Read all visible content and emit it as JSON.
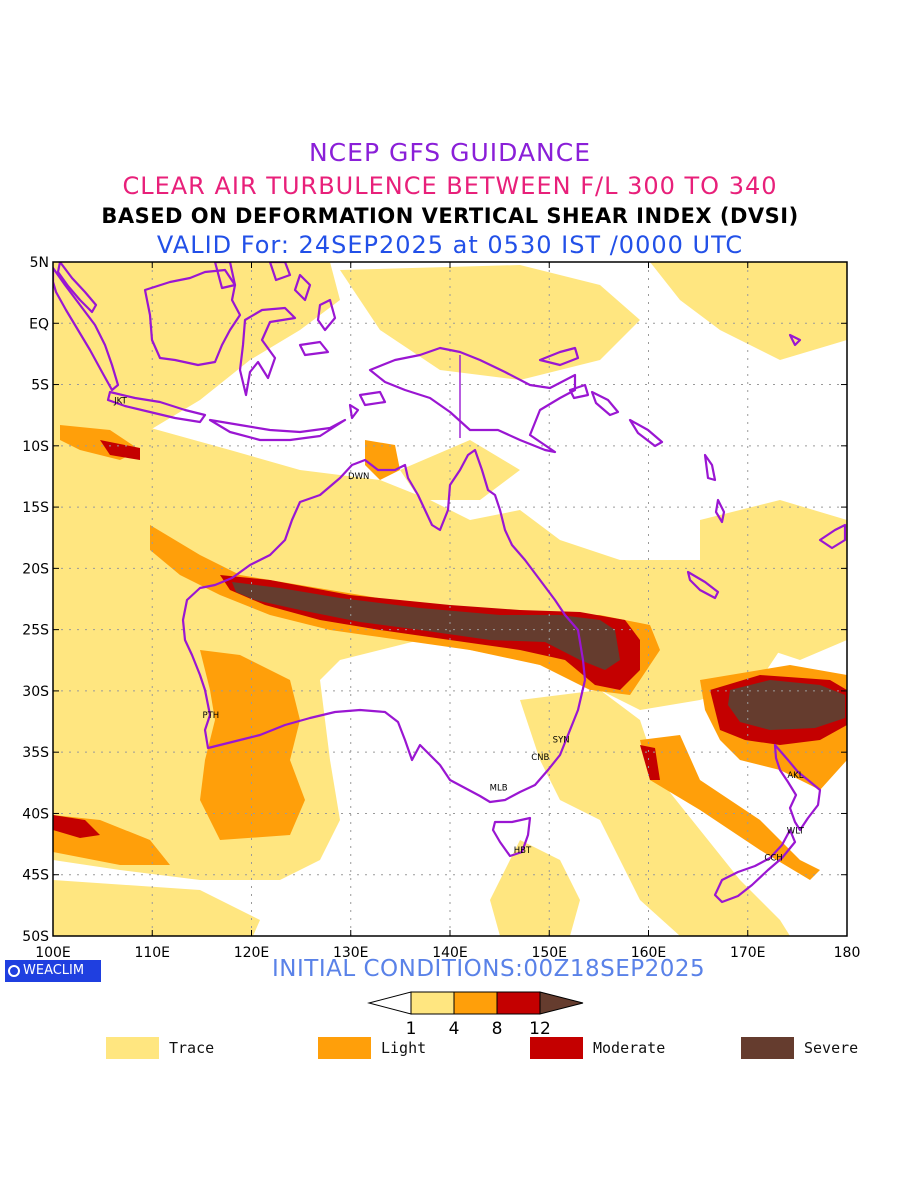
{
  "titles": {
    "line1": "NCEP GFS GUIDANCE",
    "line2": "CLEAR AIR TURBULENCE BETWEEN F/L 300 TO 340",
    "line3": "BASED ON DEFORMATION VERTICAL SHEAR INDEX (DVSI)",
    "line4": "VALID For: 24SEP2025 at 0530 IST /0000 UTC"
  },
  "colors": {
    "title1": "#8a1fd8",
    "title2": "#e8207a",
    "title3": "#000000",
    "title4": "#2250e8",
    "initial": "#5a82e8",
    "coastline": "#9a16d2",
    "trace": "#ffe680",
    "light": "#ff9f0a",
    "moderate": "#c40000",
    "severe": "#653c2e"
  },
  "map": {
    "lat_labels": [
      "5N",
      "EQ",
      "5S",
      "10S",
      "15S",
      "20S",
      "25S",
      "30S",
      "35S",
      "40S",
      "45S",
      "50S"
    ],
    "lon_labels": [
      "100E",
      "110E",
      "120E",
      "130E",
      "140E",
      "150E",
      "160E",
      "170E",
      "180"
    ],
    "stations": [
      {
        "code": "JKT",
        "lon": 106.8,
        "lat": -6.2
      },
      {
        "code": "DWN",
        "lon": 130.8,
        "lat": -12.4
      },
      {
        "code": "PTH",
        "lon": 115.9,
        "lat": -31.9
      },
      {
        "code": "SYN",
        "lon": 151.2,
        "lat": -33.9
      },
      {
        "code": "CNB",
        "lon": 149.1,
        "lat": -35.3
      },
      {
        "code": "MLB",
        "lon": 144.9,
        "lat": -37.8
      },
      {
        "code": "HBT",
        "lon": 147.3,
        "lat": -42.9
      },
      {
        "code": "AKL",
        "lon": 174.8,
        "lat": -36.8
      },
      {
        "code": "WLT",
        "lon": 174.8,
        "lat": -41.3
      },
      {
        "code": "CCH",
        "lon": 172.6,
        "lat": -43.5
      }
    ]
  },
  "logo": "WEACLIM",
  "initial_conditions": "INITIAL CONDITIONS:00Z18SEP2025",
  "colorbar": {
    "ticks": [
      "1",
      "4",
      "8",
      "12"
    ]
  },
  "legend": [
    {
      "label": "Trace",
      "color": "#ffe680"
    },
    {
      "label": "Light",
      "color": "#ff9f0a"
    },
    {
      "label": "Moderate",
      "color": "#c40000"
    },
    {
      "label": "Severe",
      "color": "#653c2e"
    }
  ]
}
